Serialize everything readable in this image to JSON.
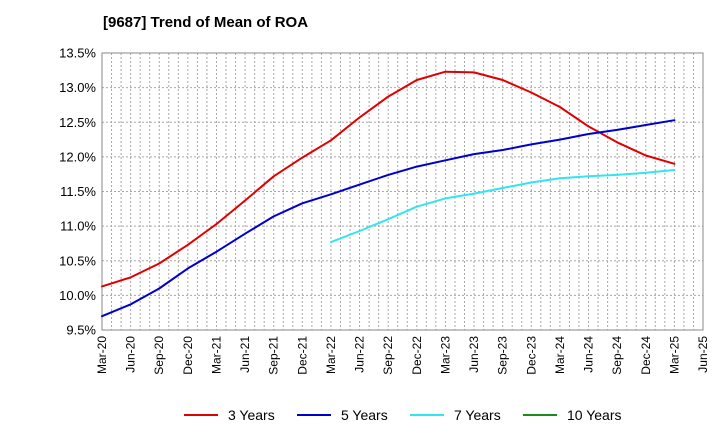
{
  "chart_data": {
    "type": "line",
    "title": "[9687]  Trend of Mean of ROA",
    "xlabel": "",
    "ylabel": "",
    "x_ticks": [
      "Mar-20",
      "Jun-20",
      "Sep-20",
      "Dec-20",
      "Mar-21",
      "Jun-21",
      "Sep-21",
      "Dec-21",
      "Mar-22",
      "Jun-22",
      "Sep-22",
      "Dec-22",
      "Mar-23",
      "Jun-23",
      "Sep-23",
      "Dec-23",
      "Mar-24",
      "Jun-24",
      "Sep-24",
      "Dec-24",
      "Mar-25",
      "Jun-25"
    ],
    "y_ticks": [
      "9.5%",
      "10.0%",
      "10.5%",
      "11.0%",
      "11.5%",
      "12.0%",
      "12.5%",
      "13.0%",
      "13.5%"
    ],
    "ylim": [
      9.5,
      13.5
    ],
    "grid": true,
    "legend_position": "bottom",
    "series": [
      {
        "name": "3 Years",
        "color": "#e00000",
        "points": [
          [
            "Mar-20",
            10.13
          ],
          [
            "Jun-20",
            10.26
          ],
          [
            "Sep-20",
            10.46
          ],
          [
            "Dec-20",
            10.73
          ],
          [
            "Mar-21",
            11.03
          ],
          [
            "Jun-21",
            11.37
          ],
          [
            "Sep-21",
            11.72
          ],
          [
            "Dec-21",
            11.99
          ],
          [
            "Mar-22",
            12.24
          ],
          [
            "Jun-22",
            12.57
          ],
          [
            "Sep-22",
            12.87
          ],
          [
            "Dec-22",
            13.11
          ],
          [
            "Mar-23",
            13.23
          ],
          [
            "Jun-23",
            13.22
          ],
          [
            "Sep-23",
            13.11
          ],
          [
            "Dec-23",
            12.93
          ],
          [
            "Mar-24",
            12.72
          ],
          [
            "Jun-24",
            12.44
          ],
          [
            "Sep-24",
            12.21
          ],
          [
            "Dec-24",
            12.02
          ],
          [
            "Mar-25",
            11.9
          ]
        ]
      },
      {
        "name": "5 Years",
        "color": "#0000cc",
        "points": [
          [
            "Mar-20",
            9.7
          ],
          [
            "Jun-20",
            9.87
          ],
          [
            "Sep-20",
            10.1
          ],
          [
            "Dec-20",
            10.39
          ],
          [
            "Mar-21",
            10.63
          ],
          [
            "Jun-21",
            10.89
          ],
          [
            "Sep-21",
            11.14
          ],
          [
            "Dec-21",
            11.33
          ],
          [
            "Mar-22",
            11.46
          ],
          [
            "Jun-22",
            11.6
          ],
          [
            "Sep-22",
            11.74
          ],
          [
            "Dec-22",
            11.86
          ],
          [
            "Mar-23",
            11.95
          ],
          [
            "Jun-23",
            12.04
          ],
          [
            "Sep-23",
            12.1
          ],
          [
            "Dec-23",
            12.18
          ],
          [
            "Mar-24",
            12.25
          ],
          [
            "Jun-24",
            12.33
          ],
          [
            "Sep-24",
            12.39
          ],
          [
            "Dec-24",
            12.46
          ],
          [
            "Mar-25",
            12.53
          ]
        ]
      },
      {
        "name": "7 Years",
        "color": "#33e5ee",
        "points": [
          [
            "Mar-22",
            10.77
          ],
          [
            "Jun-22",
            10.93
          ],
          [
            "Sep-22",
            11.1
          ],
          [
            "Dec-22",
            11.28
          ],
          [
            "Mar-23",
            11.4
          ],
          [
            "Jun-23",
            11.47
          ],
          [
            "Sep-23",
            11.55
          ],
          [
            "Dec-23",
            11.63
          ],
          [
            "Mar-24",
            11.69
          ],
          [
            "Jun-24",
            11.72
          ],
          [
            "Sep-24",
            11.74
          ],
          [
            "Dec-24",
            11.77
          ],
          [
            "Mar-25",
            11.81
          ]
        ]
      },
      {
        "name": "10 Years",
        "color": "#1a8a1a",
        "points": []
      }
    ]
  }
}
